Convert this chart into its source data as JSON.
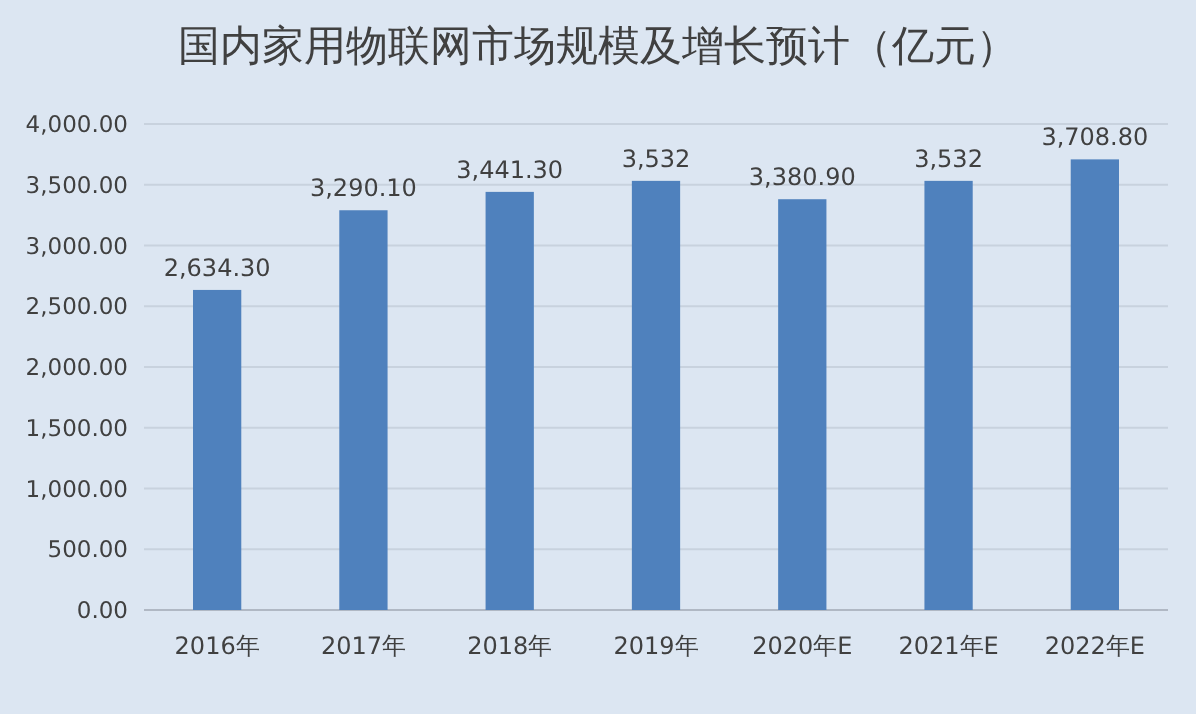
{
  "chart_data": {
    "type": "bar",
    "title": "国内家用物联网市场规模及增长预计（亿元）",
    "categories": [
      "2016年",
      "2017年",
      "2018年",
      "2019年",
      "2020年E",
      "2021年E",
      "2022年E"
    ],
    "values": [
      2634.3,
      3290.1,
      3441.3,
      3532,
      3380.9,
      3532,
      3708.8
    ],
    "value_labels": [
      "2,634.30",
      "3,290.10",
      "3,441.30",
      "3,532",
      "3,380.90",
      "3,532",
      "3,708.80"
    ],
    "color": "#4f81bd",
    "ylim": [
      0,
      4000
    ],
    "yticks": [
      {
        "value": 0,
        "label": "0.00"
      },
      {
        "value": 500,
        "label": "500.00"
      },
      {
        "value": 1000,
        "label": "1,000.00"
      },
      {
        "value": 1500,
        "label": "1,500.00"
      },
      {
        "value": 2000,
        "label": "2,000.00"
      },
      {
        "value": 2500,
        "label": "2,500.00"
      },
      {
        "value": 3000,
        "label": "3,000.00"
      },
      {
        "value": 3500,
        "label": "3,500.00"
      },
      {
        "value": 4000,
        "label": "4,000.00"
      }
    ],
    "grid": "y"
  }
}
